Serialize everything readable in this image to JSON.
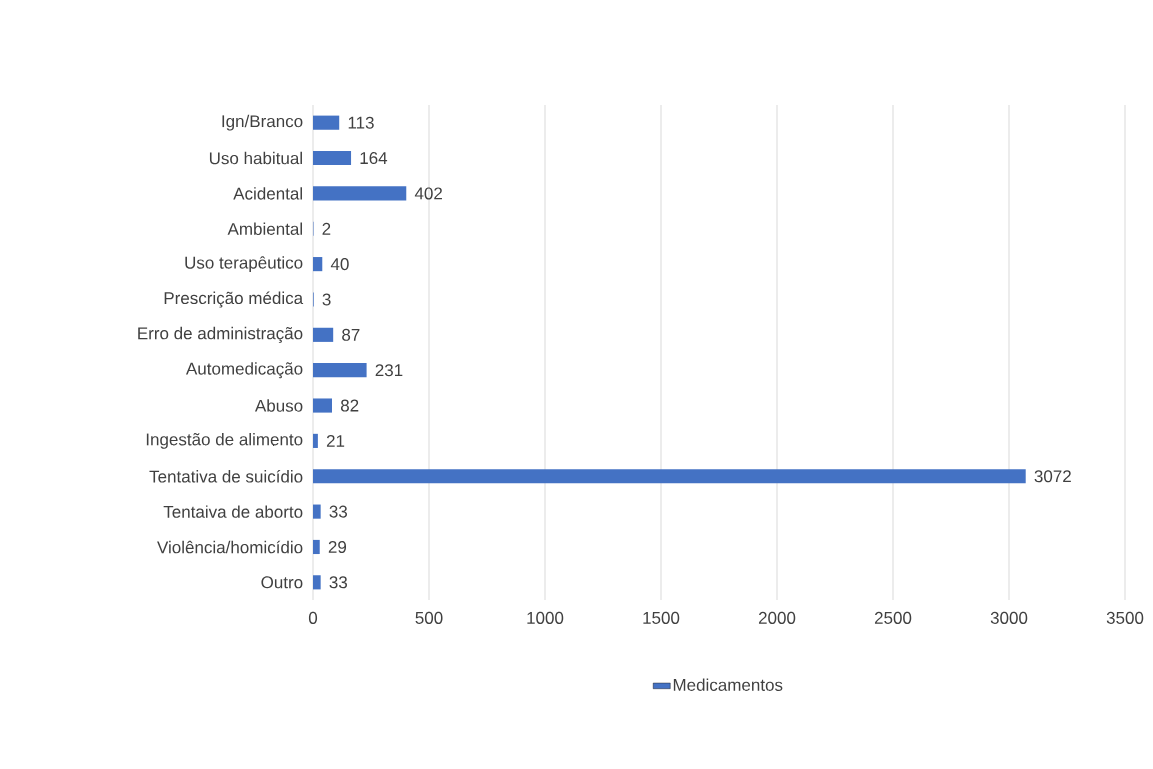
{
  "chart_data": {
    "type": "bar",
    "orientation": "horizontal",
    "categories": [
      "Ign/Branco",
      "Uso habitual",
      "Acidental",
      "Ambiental",
      "Uso terapêutico",
      "Prescrição médica",
      "Erro de administração",
      "Automedicação",
      "Abuso",
      "Ingestão de alimento",
      "Tentativa de suicídio",
      "Tentaiva de aborto",
      "Violência/homicídio",
      "Outro"
    ],
    "series": [
      {
        "name": "Medicamentos",
        "color": "#4472c4",
        "values": [
          113,
          164,
          402,
          2,
          40,
          3,
          87,
          231,
          82,
          21,
          3072,
          33,
          29,
          33
        ]
      }
    ],
    "xlim": [
      0,
      3500
    ],
    "xticks": [
      0,
      500,
      1000,
      1500,
      2000,
      2500,
      3000,
      3500
    ],
    "grid": "x",
    "legend": "bottom",
    "data_labels": true
  }
}
